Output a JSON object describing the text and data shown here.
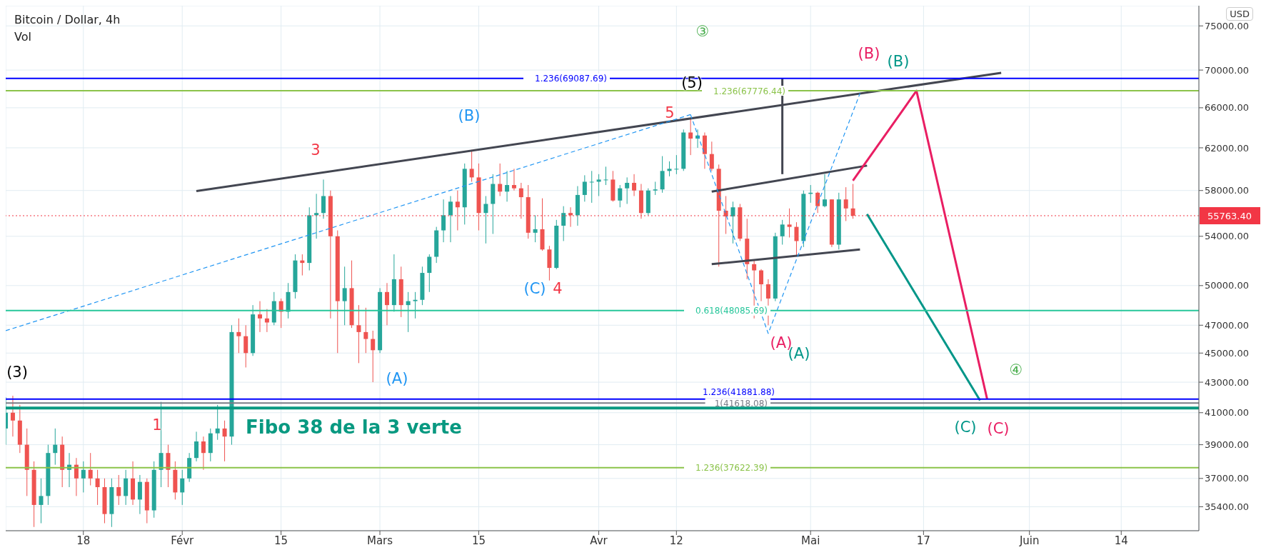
{
  "chart_data": {
    "type": "candlestick",
    "title": "Bitcoin / Dollar, 4h",
    "subtitle": "Vol",
    "ylabel": "USD",
    "log": true,
    "grid": true,
    "xlim": [
      "--01-07",
      "--06-25"
    ],
    "xticks": [
      {
        "value": "--01-18",
        "label": "18"
      },
      {
        "value": "--02-01",
        "label": "Févr"
      },
      {
        "value": "--02-15",
        "label": "15"
      },
      {
        "value": "--03-01",
        "label": "Mars"
      },
      {
        "value": "--03-15",
        "label": "15"
      },
      {
        "value": "--04-01",
        "label": "Avr"
      },
      {
        "value": "--04-12",
        "label": "12"
      },
      {
        "value": "--05-01",
        "label": "Mai"
      },
      {
        "value": "--05-17",
        "label": "17"
      },
      {
        "value": "--06-01",
        "label": "Juin"
      },
      {
        "value": "--06-14",
        "label": "14"
      }
    ],
    "ylim": [
      34100,
      77400
    ],
    "yticks": [
      {
        "value": 35400,
        "label": "35400.00"
      },
      {
        "value": 37000,
        "label": "37000.00"
      },
      {
        "value": 39000,
        "label": "39000.00"
      },
      {
        "value": 41000,
        "label": "41000.00"
      },
      {
        "value": 43000,
        "label": "43000.00"
      },
      {
        "value": 45000,
        "label": "45000.00"
      },
      {
        "value": 47000,
        "label": "47000.00"
      },
      {
        "value": 50000,
        "label": "50000.00"
      },
      {
        "value": 54000,
        "label": "54000.00"
      },
      {
        "value": 58000,
        "label": "58000.00"
      },
      {
        "value": 62000,
        "label": "62000.00"
      },
      {
        "value": 66000,
        "label": "66000.00"
      },
      {
        "value": 70000,
        "label": "70000.00"
      },
      {
        "value": 75000,
        "label": "75000.00"
      }
    ],
    "x": [
      "--01-07",
      "--01-08",
      "--01-09",
      "--01-10",
      "--01-11",
      "--01-12",
      "--01-13",
      "--01-14",
      "--01-15",
      "--01-16",
      "--01-17",
      "--01-18",
      "--01-19",
      "--01-20",
      "--01-21",
      "--01-22",
      "--01-23",
      "--01-24",
      "--01-25",
      "--01-26",
      "--01-27",
      "--01-28",
      "--01-29",
      "--01-30",
      "--01-31",
      "--02-01",
      "--02-02",
      "--02-03",
      "--02-04",
      "--02-05",
      "--02-06",
      "--02-07",
      "--02-08",
      "--02-09",
      "--02-10",
      "--02-11",
      "--02-12",
      "--02-13",
      "--02-14",
      "--02-15",
      "--02-16",
      "--02-17",
      "--02-18",
      "--02-19",
      "--02-20",
      "--02-21",
      "--02-22",
      "--02-23",
      "--02-24",
      "--02-25",
      "--02-26",
      "--02-27",
      "--02-28",
      "--03-01",
      "--03-02",
      "--03-03",
      "--03-04",
      "--03-05",
      "--03-06",
      "--03-07",
      "--03-08",
      "--03-09",
      "--03-10",
      "--03-11",
      "--03-12",
      "--03-13",
      "--03-14",
      "--03-15",
      "--03-16",
      "--03-17",
      "--03-18",
      "--03-19",
      "--03-20",
      "--03-21",
      "--03-22",
      "--03-23",
      "--03-24",
      "--03-25",
      "--03-26",
      "--03-27",
      "--03-28",
      "--03-29",
      "--03-30",
      "--03-31",
      "--04-01",
      "--04-02",
      "--04-03",
      "--04-04",
      "--04-05",
      "--04-06",
      "--04-07",
      "--04-08",
      "--04-09",
      "--04-10",
      "--04-11",
      "--04-12",
      "--04-13",
      "--04-14",
      "--04-15",
      "--04-16",
      "--04-17",
      "--04-18",
      "--04-19",
      "--04-20",
      "--04-21",
      "--04-22",
      "--04-23",
      "--04-24",
      "--04-25",
      "--04-26",
      "--04-27",
      "--04-28",
      "--04-29",
      "--04-30",
      "--05-01",
      "--05-02",
      "--05-03",
      "--05-04",
      "--05-05",
      "--05-06",
      "--05-07"
    ],
    "ohlc": [
      [
        40000,
        42000,
        39000,
        41000
      ],
      [
        41000,
        42100,
        39500,
        40500
      ],
      [
        40500,
        41500,
        38500,
        39000
      ],
      [
        39000,
        40000,
        36000,
        37500
      ],
      [
        37500,
        38000,
        34300,
        35500
      ],
      [
        35500,
        37000,
        34500,
        36000
      ],
      [
        36000,
        39000,
        35500,
        38500
      ],
      [
        38500,
        40000,
        37800,
        39000
      ],
      [
        39000,
        39500,
        36500,
        37500
      ],
      [
        37500,
        38500,
        36500,
        37800
      ],
      [
        37800,
        38200,
        36000,
        37000
      ],
      [
        37000,
        38000,
        36200,
        37500
      ],
      [
        37500,
        38500,
        36600,
        37000
      ],
      [
        37000,
        37500,
        35500,
        36500
      ],
      [
        36500,
        37000,
        34500,
        35000
      ],
      [
        35000,
        37000,
        34300,
        36500
      ],
      [
        36500,
        37200,
        35500,
        36000
      ],
      [
        36000,
        37500,
        35500,
        37000
      ],
      [
        37000,
        38000,
        35500,
        35800
      ],
      [
        35800,
        37200,
        35000,
        36800
      ],
      [
        36800,
        37000,
        34500,
        35200
      ],
      [
        35200,
        38000,
        34800,
        37500
      ],
      [
        37500,
        41700,
        36500,
        38500
      ],
      [
        38500,
        39000,
        36500,
        37500
      ],
      [
        37500,
        38000,
        35800,
        36200
      ],
      [
        36200,
        37500,
        35500,
        37000
      ],
      [
        37000,
        38500,
        36800,
        38200
      ],
      [
        38200,
        39800,
        38000,
        39200
      ],
      [
        39200,
        39500,
        37500,
        38500
      ],
      [
        38500,
        40000,
        38000,
        39700
      ],
      [
        39700,
        41500,
        39300,
        40000
      ],
      [
        40000,
        40500,
        38000,
        39500
      ],
      [
        39500,
        47000,
        39000,
        46500
      ],
      [
        46500,
        47500,
        45000,
        46200
      ],
      [
        46200,
        47000,
        44000,
        45000
      ],
      [
        45000,
        48500,
        44800,
        47800
      ],
      [
        47800,
        48800,
        46500,
        47500
      ],
      [
        47500,
        48200,
        46500,
        47200
      ],
      [
        47200,
        49500,
        47000,
        48800
      ],
      [
        48800,
        49000,
        46800,
        48000
      ],
      [
        48000,
        50200,
        47500,
        49500
      ],
      [
        49500,
        52500,
        49000,
        52000
      ],
      [
        52000,
        52500,
        50800,
        51800
      ],
      [
        51800,
        56500,
        51200,
        55800
      ],
      [
        55800,
        57700,
        53800,
        56000
      ],
      [
        56000,
        59000,
        55500,
        57500
      ],
      [
        57500,
        58000,
        47500,
        54000
      ],
      [
        54000,
        54500,
        45000,
        48800
      ],
      [
        48800,
        51500,
        47000,
        49800
      ],
      [
        49800,
        52000,
        46800,
        47000
      ],
      [
        47000,
        48500,
        44300,
        46500
      ],
      [
        46500,
        48300,
        45000,
        46000
      ],
      [
        46000,
        46600,
        43000,
        45200
      ],
      [
        45200,
        49800,
        45000,
        49500
      ],
      [
        49500,
        50200,
        47000,
        48500
      ],
      [
        48500,
        52500,
        48000,
        50500
      ],
      [
        50500,
        51500,
        47600,
        48500
      ],
      [
        48500,
        49500,
        46500,
        48800
      ],
      [
        48800,
        49500,
        47500,
        48900
      ],
      [
        48900,
        51500,
        48500,
        51000
      ],
      [
        51000,
        52500,
        49500,
        52300
      ],
      [
        52300,
        54800,
        51800,
        54500
      ],
      [
        54500,
        57200,
        53500,
        55800
      ],
      [
        55800,
        57500,
        53500,
        57000
      ],
      [
        57000,
        58000,
        54500,
        56500
      ],
      [
        56500,
        60500,
        55000,
        60000
      ],
      [
        60000,
        61800,
        58800,
        59200
      ],
      [
        59200,
        60500,
        54500,
        56000
      ],
      [
        56000,
        57500,
        53400,
        56800
      ],
      [
        56800,
        59500,
        54200,
        58600
      ],
      [
        58600,
        60500,
        57500,
        57900
      ],
      [
        57900,
        59800,
        57000,
        58500
      ],
      [
        58500,
        60000,
        58000,
        58200
      ],
      [
        58200,
        58700,
        55500,
        57400
      ],
      [
        57400,
        58500,
        53800,
        54300
      ],
      [
        54300,
        55800,
        53500,
        54600
      ],
      [
        54600,
        57300,
        52800,
        52900
      ],
      [
        52900,
        53200,
        50400,
        51400
      ],
      [
        51400,
        55400,
        51300,
        54900
      ],
      [
        54900,
        56600,
        53600,
        56000
      ],
      [
        56000,
        56500,
        54800,
        55800
      ],
      [
        55800,
        58400,
        54900,
        57600
      ],
      [
        57600,
        59400,
        57000,
        58800
      ],
      [
        58800,
        59800,
        56900,
        58800
      ],
      [
        58800,
        59500,
        57500,
        59000
      ],
      [
        59000,
        60200,
        58500,
        59000
      ],
      [
        59000,
        59800,
        57000,
        57100
      ],
      [
        57100,
        58500,
        56500,
        58200
      ],
      [
        58200,
        59200,
        56800,
        58700
      ],
      [
        58700,
        59500,
        57500,
        58000
      ],
      [
        58000,
        58600,
        55500,
        56000
      ],
      [
        56000,
        58200,
        55800,
        58000
      ],
      [
        58000,
        58800,
        57600,
        58100
      ],
      [
        58100,
        61200,
        57800,
        59800
      ],
      [
        59800,
        60700,
        59300,
        60000
      ],
      [
        60000,
        61300,
        59500,
        60000
      ],
      [
        60000,
        63800,
        59800,
        63500
      ],
      [
        63500,
        64900,
        61300,
        62900
      ],
      [
        62900,
        63800,
        62000,
        63200
      ],
      [
        63200,
        63500,
        60000,
        61400
      ],
      [
        61400,
        62600,
        59800,
        60000
      ],
      [
        60000,
        60400,
        51500,
        56200
      ],
      [
        56200,
        57500,
        54200,
        55700
      ],
      [
        55700,
        57000,
        53400,
        56500
      ],
      [
        56500,
        56800,
        53600,
        53800
      ],
      [
        53800,
        55500,
        50500,
        51700
      ],
      [
        51700,
        52000,
        47500,
        51200
      ],
      [
        51200,
        51300,
        48800,
        50100
      ],
      [
        50100,
        50500,
        47000,
        49000
      ],
      [
        49000,
        54300,
        48800,
        54000
      ],
      [
        54000,
        55400,
        53300,
        55000
      ],
      [
        55000,
        56400,
        53900,
        54800
      ],
      [
        54800,
        55200,
        52400,
        53600
      ],
      [
        53600,
        58000,
        53100,
        57700
      ],
      [
        57700,
        58500,
        56900,
        57800
      ],
      [
        57800,
        57900,
        56000,
        56600
      ],
      [
        56600,
        59500,
        56500,
        57200
      ],
      [
        57200,
        57200,
        53100,
        53300
      ],
      [
        53300,
        57800,
        52900,
        57200
      ],
      [
        57200,
        58300,
        55300,
        56400
      ],
      [
        56400,
        58600,
        55500,
        55763.4
      ]
    ],
    "series": [
      {
        "type": "line",
        "color": "#434651",
        "x": [
          "--02-03",
          "--05-28"
        ],
        "values": [
          57950,
          69700
        ]
      },
      {
        "type": "line",
        "color": "#434651",
        "x": [
          "--04-17",
          "--05-09"
        ],
        "values": [
          57900,
          60300
        ]
      },
      {
        "type": "line",
        "color": "#434651",
        "x": [
          "--04-17",
          "--05-08"
        ],
        "values": [
          51700,
          52900
        ]
      },
      {
        "type": "line",
        "color": "#434651",
        "x": [
          "--04-27",
          "--04-27"
        ],
        "values": [
          69087.69,
          59500
        ]
      },
      {
        "type": "line",
        "color": "#2196f3",
        "line_style": "dashed",
        "x": [
          "--01-07",
          "--04-14"
        ],
        "values": [
          46600,
          65300
        ]
      },
      {
        "type": "line",
        "color": "#2196f3",
        "line_style": "dashed",
        "x": [
          "--04-14",
          "--04-25",
          "--05-08"
        ],
        "values": [
          65300,
          46400,
          67500
        ]
      },
      {
        "type": "line",
        "color": "#e91e63",
        "x": [
          "--05-07",
          "--05-16",
          "--05-26"
        ],
        "values": [
          58900,
          67776.44,
          41900
        ]
      },
      {
        "type": "line",
        "color": "#009688",
        "x": [
          "--05-09",
          "--05-25"
        ],
        "values": [
          55900,
          41800
        ]
      }
    ],
    "ref_lines": [
      {
        "axis": "y",
        "value": 69087.69,
        "label": "1.236(69087.69)",
        "color": "#0000ff"
      },
      {
        "axis": "y",
        "value": 67776.44,
        "label": "1.236(67776.44)",
        "color": "#8bc34a"
      },
      {
        "axis": "y",
        "value": 48085.69,
        "label": "0.618(48085.69)",
        "color": "#26c69a"
      },
      {
        "axis": "y",
        "value": 41881.88,
        "label": "1.236(41881.88)",
        "color": "#0000ff"
      },
      {
        "axis": "y",
        "value": 41618.08,
        "label": "1(41618.08)",
        "color": "#787b86"
      },
      {
        "axis": "y",
        "value": 41300,
        "label": "Fibo 38 de la 3 verte",
        "color": "#089981"
      },
      {
        "axis": "y",
        "value": 37622.39,
        "label": "1.236(37622.39)",
        "color": "#8bc34a"
      },
      {
        "axis": "y",
        "value": 55763.4,
        "label": "55763.40",
        "color": "#f23645",
        "line_style": "dotted"
      }
    ],
    "annotations": [
      "(3)",
      "1",
      "3",
      "(A)",
      "(B)",
      "(C)",
      "4",
      "5",
      "(5)",
      "③",
      "(A)",
      "(A)",
      "(B)",
      "(B)",
      "④",
      "(C)",
      "(C)"
    ]
  }
}
